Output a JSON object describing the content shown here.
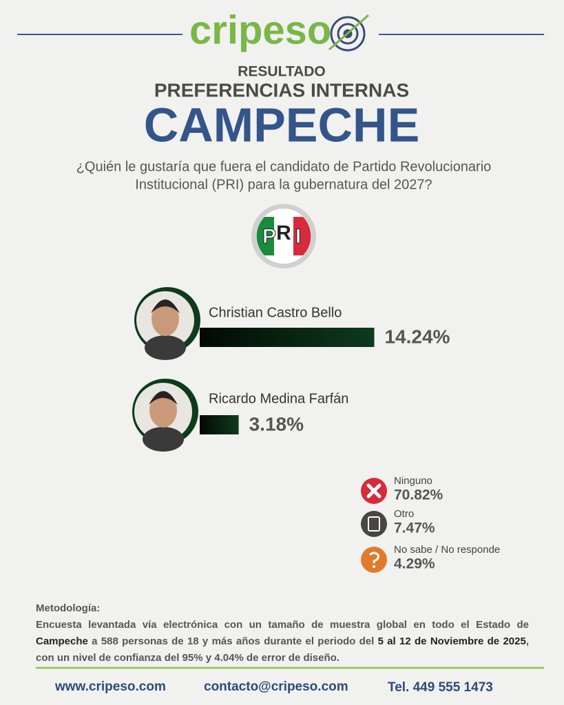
{
  "header": {
    "logo": "cripeso",
    "kicker": "RESULTADO",
    "subtitle": "PREFERENCIAS INTERNAS",
    "title": "CAMPECHE",
    "question": [
      "¿Quién le gustaría que fuera el candidato de Partido Revolucionario",
      "Institucional (PRI) para la gubernatura del 2027?"
    ]
  },
  "party_logo": [
    "P",
    "R",
    "I"
  ],
  "chart_data": {
    "type": "bar",
    "orientation": "horizontal",
    "categories": [
      "Christian Castro Bello",
      "Ricardo Medina Farfán"
    ],
    "values": [
      14.24,
      3.18
    ],
    "value_labels": [
      "14.24%",
      "3.18%"
    ],
    "color": "#0d3b1c"
  },
  "others": {
    "categories": [
      "Ninguno",
      "Otro",
      "No sabe / No responde"
    ],
    "values": [
      70.82,
      7.47,
      4.29
    ],
    "value_labels": [
      "70.82%",
      "7.47%",
      "4.29%"
    ],
    "colors": [
      "#d62b3a",
      "#4a4545",
      "#e07b2a"
    ]
  },
  "methodology": {
    "title": "Metodología:",
    "parts": [
      {
        "text": "Encuesta levantada vía electrónica con un tamaño de muestra global en todo el Estado de ",
        "emphasis": false
      },
      {
        "text": "Campeche",
        "emphasis": true
      },
      {
        "text": " a 588 personas de 18 y más años durante el periodo del ",
        "emphasis": false
      },
      {
        "text": "5 al 12 de Noviembre de 2025",
        "emphasis": true
      },
      {
        "text": ", con un nivel de confianza del 95% y 4.04% de error de diseño.",
        "emphasis": false
      }
    ]
  },
  "footer": [
    "www.cripeso.com",
    "contacto@cripeso.com",
    "Tel. 449 555 1473"
  ]
}
